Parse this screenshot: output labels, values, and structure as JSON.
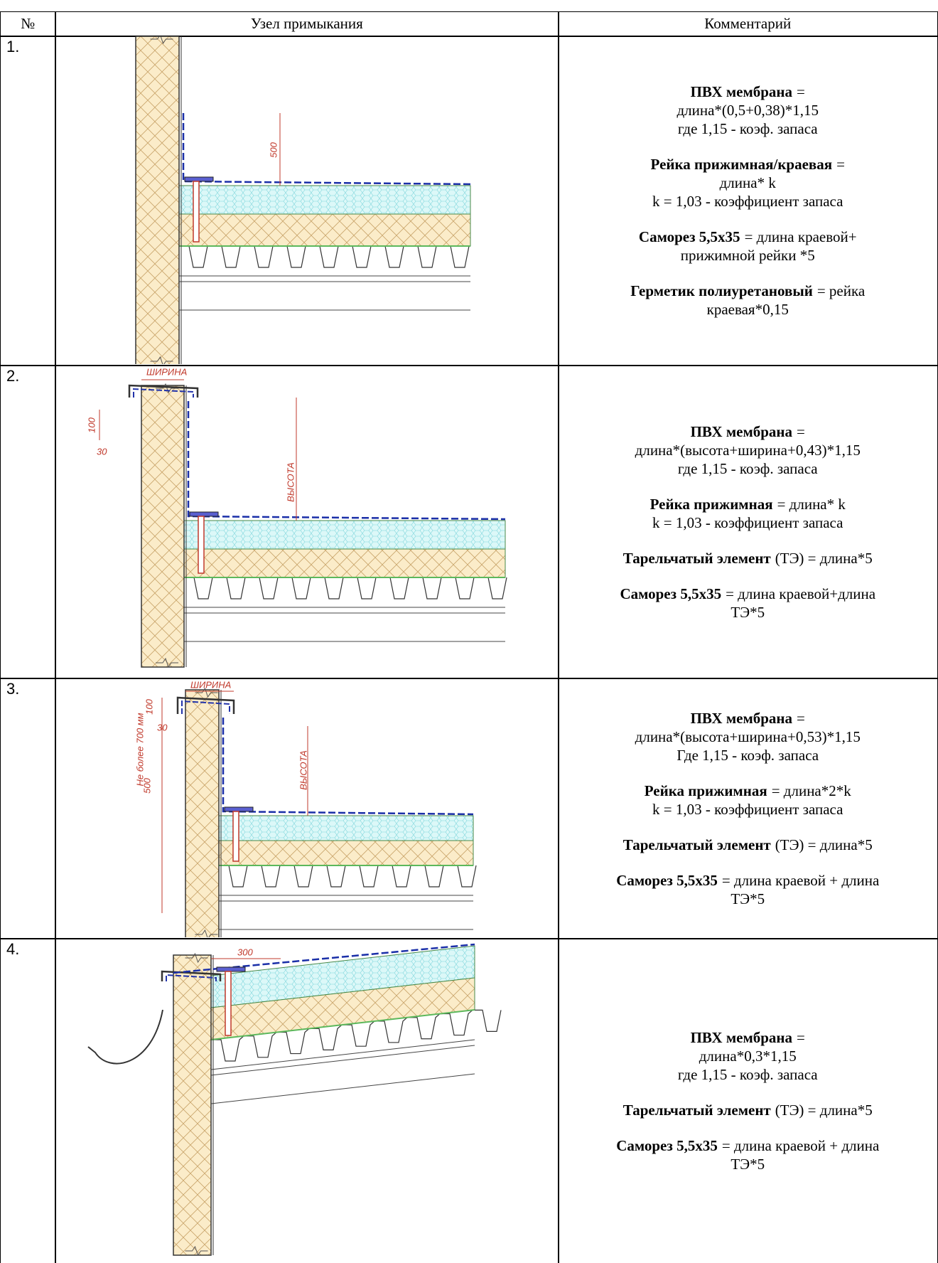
{
  "header": {
    "columns": [
      "№",
      "Узел примыкания",
      "Комментарий"
    ]
  },
  "rows": [
    {
      "number": "1.",
      "labels": [
        "500"
      ],
      "comment": [
        {
          "bold": "ПВХ мембрана",
          "rest": "=",
          "lines": [
            "длина*(0,5+0,38)*1,15",
            "где 1,15 - коэф. запаса"
          ]
        },
        {
          "bold": "Рейка прижимная/краевая",
          "rest": "=",
          "lines": [
            "длина* k",
            "k = 1,03 - коэффициент запаса"
          ]
        },
        {
          "bold": "Саморез 5,5х35",
          "rest": "= длина краевой+",
          "lines": [
            "прижимной рейки *5"
          ]
        },
        {
          "bold": "Герметик полиуретановый",
          "rest": "= рейка",
          "lines": [
            "краевая*0,15"
          ]
        }
      ]
    },
    {
      "number": "2.",
      "labels": [
        "ШИРИНА",
        "100",
        "30",
        "ВЫСОТА"
      ],
      "comment": [
        {
          "bold": "ПВХ мембрана",
          "rest": "=",
          "lines": [
            "длина*(высота+ширина+0,43)*1,15",
            "где 1,15 - коэф. запаса"
          ]
        },
        {
          "bold": "Рейка прижимная",
          "rest": "= длина* k",
          "lines": [
            "k = 1,03 - коэффициент запаса"
          ]
        },
        {
          "bold": "Тарельчатый элемент",
          "rest": "(ТЭ) = длина*5"
        },
        {
          "bold": "Саморез 5,5х35",
          "rest": "= длина краевой+длина",
          "lines": [
            "ТЭ*5"
          ]
        }
      ]
    },
    {
      "number": "3.",
      "labels": [
        "ШИРИНА",
        "100",
        "30",
        "Не более 700 мм",
        "500",
        "ВЫСОТА"
      ],
      "comment": [
        {
          "bold": "ПВХ мембрана",
          "rest": "=",
          "lines": [
            "длина*(высота+ширина+0,53)*1,15",
            "Где 1,15 - коэф. запаса"
          ]
        },
        {
          "bold": "Рейка прижимная",
          "rest": "= длина*2*k",
          "lines": [
            "k = 1,03 - коэффициент запаса"
          ]
        },
        {
          "bold": "Тарельчатый элемент",
          "rest": "(ТЭ) = длина*5"
        },
        {
          "bold": "Саморез 5,5х35",
          "rest": "= длина краевой + длина",
          "lines": [
            "ТЭ*5"
          ]
        }
      ]
    },
    {
      "number": "4.",
      "labels": [
        "300"
      ],
      "comment": [
        {
          "bold": "ПВХ мембрана",
          "rest": "=",
          "lines": [
            "длина*0,3*1,15",
            "где 1,15 - коэф. запаса"
          ]
        },
        {
          "bold": "Тарельчатый элемент",
          "rest": "(ТЭ) = длина*5"
        },
        {
          "bold": "Саморез 5,5х35",
          "rest": "= длина краевой + длина",
          "lines": [
            "ТЭ*5"
          ]
        }
      ]
    }
  ]
}
